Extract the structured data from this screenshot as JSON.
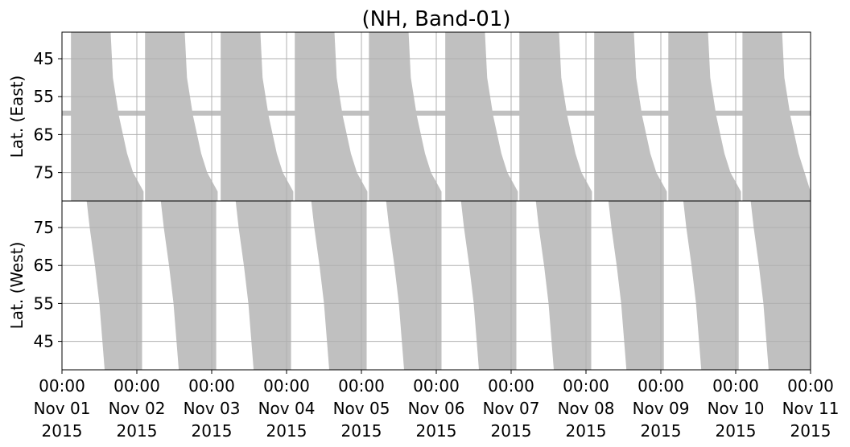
{
  "chart_data": {
    "type": "area",
    "title": "(NH, Band-01)",
    "xlim": [
      0,
      10
    ],
    "xticks": [
      {
        "value": 0,
        "label": "00:00\nNov 01\n2015"
      },
      {
        "value": 1,
        "label": "00:00\nNov 02\n2015"
      },
      {
        "value": 2,
        "label": "00:00\nNov 03\n2015"
      },
      {
        "value": 3,
        "label": "00:00\nNov 04\n2015"
      },
      {
        "value": 4,
        "label": "00:00\nNov 05\n2015"
      },
      {
        "value": 5,
        "label": "00:00\nNov 06\n2015"
      },
      {
        "value": 6,
        "label": "00:00\nNov 07\n2015"
      },
      {
        "value": 7,
        "label": "00:00\nNov 08\n2015"
      },
      {
        "value": 8,
        "label": "00:00\nNov 09\n2015"
      },
      {
        "value": 9,
        "label": "00:00\nNov 10\n2015"
      },
      {
        "value": 10,
        "label": "00:00\nNov 11\n2015"
      }
    ],
    "grid": true,
    "panels": [
      {
        "ylabel": "Lat. (East)",
        "ylim": [
          82.5,
          38
        ],
        "yticks": [
          45,
          55,
          65,
          75
        ],
        "color": "#c0c0c0",
        "band": [
          58.7,
          60
        ],
        "series": [
          {
            "x": [
              0.12,
              0.65,
              0.68,
              0.76,
              0.87,
              0.95,
              1.09,
              1.09,
              0.12
            ],
            "values": [
              38,
              38,
              50,
              60,
              70,
              75,
              80,
              82.5,
              82.5
            ]
          },
          {
            "x": [
              1.11,
              1.64,
              1.67,
              1.75,
              1.86,
              1.94,
              2.08,
              2.08,
              1.11
            ],
            "values": [
              38,
              38,
              50,
              60,
              70,
              75,
              80,
              82.5,
              82.5
            ]
          },
          {
            "x": [
              2.12,
              2.65,
              2.68,
              2.76,
              2.87,
              2.95,
              3.09,
              3.09,
              2.12
            ],
            "values": [
              38,
              38,
              50,
              60,
              70,
              75,
              80,
              82.5,
              82.5
            ]
          },
          {
            "x": [
              3.11,
              3.64,
              3.67,
              3.75,
              3.86,
              3.94,
              4.08,
              4.08,
              3.11
            ],
            "values": [
              38,
              38,
              50,
              60,
              70,
              75,
              80,
              82.5,
              82.5
            ]
          },
          {
            "x": [
              4.1,
              4.63,
              4.66,
              4.74,
              4.85,
              4.93,
              5.07,
              5.07,
              4.1
            ],
            "values": [
              38,
              38,
              50,
              60,
              70,
              75,
              80,
              82.5,
              82.5
            ]
          },
          {
            "x": [
              5.12,
              5.65,
              5.68,
              5.76,
              5.87,
              5.95,
              6.09,
              6.09,
              5.12
            ],
            "values": [
              38,
              38,
              50,
              60,
              70,
              75,
              80,
              82.5,
              82.5
            ]
          },
          {
            "x": [
              6.11,
              6.64,
              6.67,
              6.75,
              6.86,
              6.94,
              7.08,
              7.08,
              6.11
            ],
            "values": [
              38,
              38,
              50,
              60,
              70,
              75,
              80,
              82.5,
              82.5
            ]
          },
          {
            "x": [
              7.11,
              7.64,
              7.67,
              7.75,
              7.86,
              7.94,
              8.08,
              8.08,
              7.11
            ],
            "values": [
              38,
              38,
              50,
              60,
              70,
              75,
              80,
              82.5,
              82.5
            ]
          },
          {
            "x": [
              8.1,
              8.63,
              8.66,
              8.74,
              8.85,
              8.93,
              9.07,
              9.07,
              8.1
            ],
            "values": [
              38,
              38,
              50,
              60,
              70,
              75,
              80,
              82.5,
              82.5
            ]
          },
          {
            "x": [
              9.09,
              9.62,
              9.65,
              9.73,
              9.84,
              9.92,
              10,
              10,
              9.09
            ],
            "values": [
              38,
              38,
              50,
              60,
              70,
              75,
              80,
              82.5,
              82.5
            ]
          }
        ]
      },
      {
        "ylabel": "Lat. (West)",
        "ylim": [
          37.5,
          82
        ],
        "yticks": [
          45,
          55,
          65,
          75
        ],
        "color": "#c0c0c0",
        "series": [
          {
            "x": [
              0.33,
              0.37,
              0.44,
              0.5,
              0.54,
              0.57,
              1.07,
              1.07
            ],
            "values": [
              82,
              75,
              65,
              55,
              45,
              37.5,
              37.5,
              82
            ]
          },
          {
            "x": [
              1.32,
              1.36,
              1.43,
              1.49,
              1.53,
              1.56,
              2.06,
              2.06
            ],
            "values": [
              82,
              75,
              65,
              55,
              45,
              37.5,
              37.5,
              82
            ]
          },
          {
            "x": [
              2.32,
              2.36,
              2.43,
              2.49,
              2.53,
              2.56,
              3.06,
              3.06
            ],
            "values": [
              82,
              75,
              65,
              55,
              45,
              37.5,
              37.5,
              82
            ]
          },
          {
            "x": [
              3.33,
              3.37,
              3.44,
              3.5,
              3.54,
              3.57,
              4.07,
              4.07
            ],
            "values": [
              82,
              75,
              65,
              55,
              45,
              37.5,
              37.5,
              82
            ]
          },
          {
            "x": [
              4.33,
              4.37,
              4.44,
              4.5,
              4.54,
              4.57,
              5.07,
              5.07
            ],
            "values": [
              82,
              75,
              65,
              55,
              45,
              37.5,
              37.5,
              82
            ]
          },
          {
            "x": [
              5.33,
              5.37,
              5.44,
              5.5,
              5.54,
              5.57,
              6.07,
              6.07
            ],
            "values": [
              82,
              75,
              65,
              55,
              45,
              37.5,
              37.5,
              82
            ]
          },
          {
            "x": [
              6.33,
              6.37,
              6.44,
              6.5,
              6.54,
              6.57,
              7.07,
              7.07
            ],
            "values": [
              82,
              75,
              65,
              55,
              45,
              37.5,
              37.5,
              82
            ]
          },
          {
            "x": [
              7.3,
              7.34,
              7.41,
              7.47,
              7.51,
              7.54,
              8.04,
              8.04
            ],
            "values": [
              82,
              75,
              65,
              55,
              45,
              37.5,
              37.5,
              82
            ]
          },
          {
            "x": [
              8.3,
              8.34,
              8.41,
              8.47,
              8.51,
              8.54,
              9.04,
              9.04
            ],
            "values": [
              82,
              75,
              65,
              55,
              45,
              37.5,
              37.5,
              82
            ]
          },
          {
            "x": [
              9.2,
              9.24,
              9.31,
              9.37,
              9.41,
              9.44,
              10,
              10
            ],
            "values": [
              82,
              75,
              65,
              55,
              45,
              37.5,
              37.5,
              82
            ]
          }
        ]
      }
    ]
  }
}
